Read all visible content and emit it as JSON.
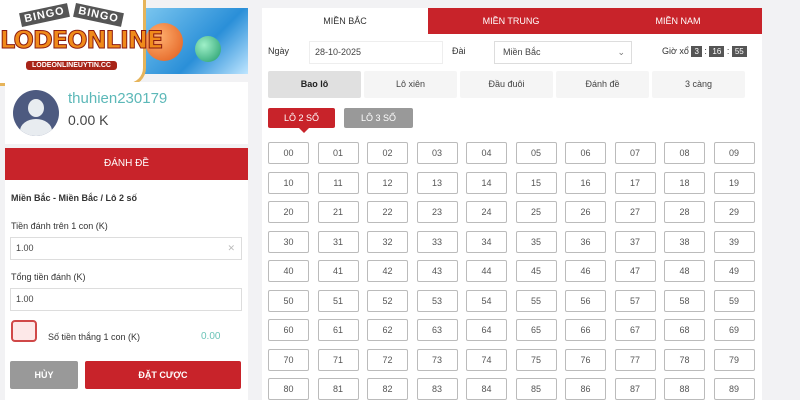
{
  "logo": {
    "bingo": [
      "BINGO",
      "BINGO"
    ],
    "name": "LODEONLINE",
    "url": "LODEONLINEUYTIN.CC"
  },
  "user": {
    "username": "thuhien230179",
    "balance": "0.00 K"
  },
  "bet_panel": {
    "header": "ĐÁNH ĐỀ",
    "selection": "Miền Bắc - Miền Bắc / Lô 2 số",
    "amount_label": "Tiền đánh trên 1 con (K)",
    "amount_value": "1.00",
    "total_label": "Tổng tiền đánh (K)",
    "total_value": "1.00",
    "win_label": "Số tiền thắng 1 con (K)",
    "win_value": "0.00",
    "cancel": "HỦY",
    "submit": "ĐẶT CƯỢC"
  },
  "region_tabs": [
    {
      "label": "MIỀN BẮC",
      "active": true
    },
    {
      "label": "MIỀN TRUNG",
      "active": false
    },
    {
      "label": "MIỀN NAM",
      "active": false
    }
  ],
  "filters": {
    "date_label": "Ngày",
    "date_value": "28-10-2025",
    "station_label": "Đài",
    "station_value": "Miền Bắc",
    "draw_time_label": "Giờ xổ",
    "clock": [
      "3",
      "16",
      "55"
    ]
  },
  "bet_types": [
    {
      "label": "Bao lô",
      "active": true
    },
    {
      "label": "Lô xiên"
    },
    {
      "label": "Đầu đuôi"
    },
    {
      "label": "Đánh đề"
    },
    {
      "label": "3 càng"
    }
  ],
  "modes": [
    {
      "label": "LÔ 2 SỐ",
      "active": true
    },
    {
      "label": "LÔ 3 SỐ",
      "active": false
    }
  ],
  "numbers": [
    "00",
    "01",
    "02",
    "03",
    "04",
    "05",
    "06",
    "07",
    "08",
    "09",
    "10",
    "11",
    "12",
    "13",
    "14",
    "15",
    "16",
    "17",
    "18",
    "19",
    "20",
    "21",
    "22",
    "23",
    "24",
    "25",
    "26",
    "27",
    "28",
    "29",
    "30",
    "31",
    "32",
    "33",
    "34",
    "35",
    "36",
    "37",
    "38",
    "39",
    "40",
    "41",
    "42",
    "43",
    "44",
    "45",
    "46",
    "47",
    "48",
    "49",
    "50",
    "51",
    "52",
    "53",
    "54",
    "55",
    "56",
    "57",
    "58",
    "59",
    "60",
    "61",
    "62",
    "63",
    "64",
    "65",
    "66",
    "67",
    "68",
    "69",
    "70",
    "71",
    "72",
    "73",
    "74",
    "75",
    "76",
    "77",
    "78",
    "79",
    "80",
    "81",
    "82",
    "83",
    "84",
    "85",
    "86",
    "87",
    "88",
    "89"
  ],
  "colors": {
    "accent": "#c8232a",
    "username": "#5cb8b8",
    "cancel": "#999999"
  }
}
